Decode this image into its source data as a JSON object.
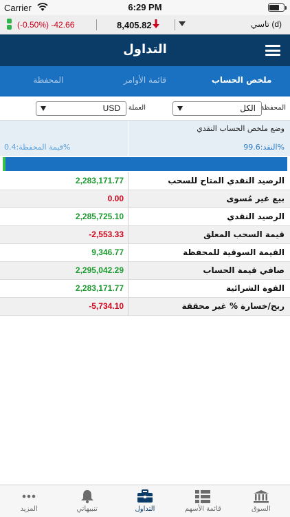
{
  "status_bar": {
    "carrier": "Carrier",
    "time": "6:29 PM"
  },
  "ticker": {
    "change": "(-0.50%)  -42.66",
    "index_value": "8,405.82",
    "market_name": "تاسي (d)",
    "change_color": "#d0021b"
  },
  "header": {
    "title": "التداول"
  },
  "tabs": [
    {
      "label": "ملخص الحساب",
      "active": true
    },
    {
      "label": "قائمة الأوامر",
      "active": false
    },
    {
      "label": "المحفظة",
      "active": false
    }
  ],
  "filters": {
    "portfolio_label": "المحفظة",
    "portfolio_value": "الكل",
    "currency_label": "العملة",
    "currency_value": "USD"
  },
  "summary": {
    "title": "وضع ملخص الحساب النقدي",
    "cash_pct_text": "النقد:99.6%",
    "portfolio_pct_text": "قيمة المحفظة:0.4%",
    "portfolio_fraction": 0.004
  },
  "rows": [
    {
      "label": "الرصيد النقدي المتاح للسحب",
      "value": "2,283,171.77",
      "sign": "pos"
    },
    {
      "label": "بيع غير مُسوى",
      "value": "0.00",
      "sign": "neg"
    },
    {
      "label": "الرصيد النقدي",
      "value": "2,285,725.10",
      "sign": "pos"
    },
    {
      "label": "قيمة السحب المعلق",
      "value": "-2,553.33",
      "sign": "neg"
    },
    {
      "label": "القيمة السوقية للمحفظة",
      "value": "9,346.77",
      "sign": "pos"
    },
    {
      "label": "صافي قيمة الحساب",
      "value": "2,295,042.29",
      "sign": "pos"
    },
    {
      "label": "القوة الشرائية",
      "value": "2,283,171.77",
      "sign": "pos"
    },
    {
      "label": "ربح/خسارة % غير محققة",
      "value": "-5,734.10",
      "sign": "neg"
    }
  ],
  "bottom_tabs": [
    {
      "label": "السوق",
      "icon": "bank-icon"
    },
    {
      "label": "قائمة الأسهم",
      "icon": "list-icon"
    },
    {
      "label": "التداول",
      "icon": "briefcase-icon",
      "active": true
    },
    {
      "label": "تنبيهاتي",
      "icon": "bell-icon"
    },
    {
      "label": "المزيد",
      "icon": "more-icon"
    }
  ],
  "colors": {
    "header": "#0b3c68",
    "tabs": "#1a71c1",
    "positive": "#1c9b30",
    "negative": "#d0021b"
  }
}
